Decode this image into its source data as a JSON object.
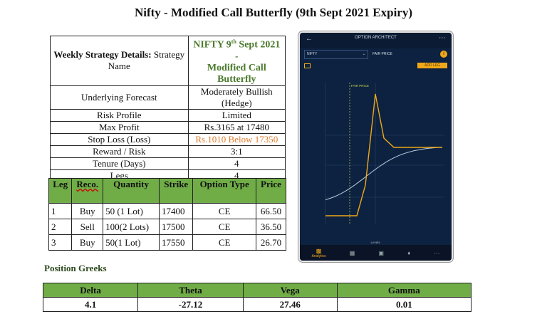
{
  "title": "Nifty - Modified Call Butterfly (9th Sept 2021 Expiry)",
  "strategy": {
    "header_label_bold": "Weekly Strategy Details:",
    "header_label_rest": " Strategy Name",
    "name_line1": "NIFTY 9",
    "name_sup": "th",
    "name_line1b": " Sept 2021 -",
    "name_line2": "Modified Call Butterfly",
    "rows": [
      {
        "label": "Underlying Forecast",
        "value": "Moderately Bullish (Hedge)"
      },
      {
        "label": "Risk Profile",
        "value": "Limited"
      },
      {
        "label": "Max Profit",
        "value": "Rs.3165 at 17480"
      },
      {
        "label": "Stop Loss (Loss)",
        "value": "Rs.1010 Below 17350"
      },
      {
        "label": "Reward / Risk",
        "value": "3:1"
      },
      {
        "label": "Tenure (Days)",
        "value": "4"
      },
      {
        "label": "Legs",
        "value": "4"
      }
    ],
    "stop_loss_color": "#e07b2c",
    "name_color": "#4a7a2c"
  },
  "legs": {
    "headers": [
      "Leg",
      "Reco.",
      "Quantity",
      "Strike",
      "Option Type",
      "Price"
    ],
    "rows": [
      [
        "1",
        "Buy",
        "50 (1 Lot)",
        "17400",
        "CE",
        "66.50"
      ],
      [
        "2",
        "Sell",
        "100(2 Lots)",
        "17500",
        "CE",
        "36.50"
      ],
      [
        "3",
        "Buy",
        "50(1 Lot)",
        "17550",
        "CE",
        "26.70"
      ]
    ],
    "header_color": "#70ad47"
  },
  "greeks": {
    "title": "Position Greeks",
    "headers": [
      "Delta",
      "Theta",
      "Vega",
      "Gamma"
    ],
    "values": [
      "4.1",
      "-27.12",
      "27.46",
      "0.01"
    ]
  },
  "phone": {
    "app_title": "OPTION ARCHITECT",
    "symbol": "NIFTY",
    "fair_price_label": "FAIR PRICE",
    "add_leg": "ADD LEG",
    "chart_marker": "FAIR PRICE",
    "x_axis_label": "Levels",
    "nav_active": "Analytics",
    "payoff_color": "#f0a818",
    "curve_color": "#b8cde0",
    "bg_color": "#0d2240"
  }
}
